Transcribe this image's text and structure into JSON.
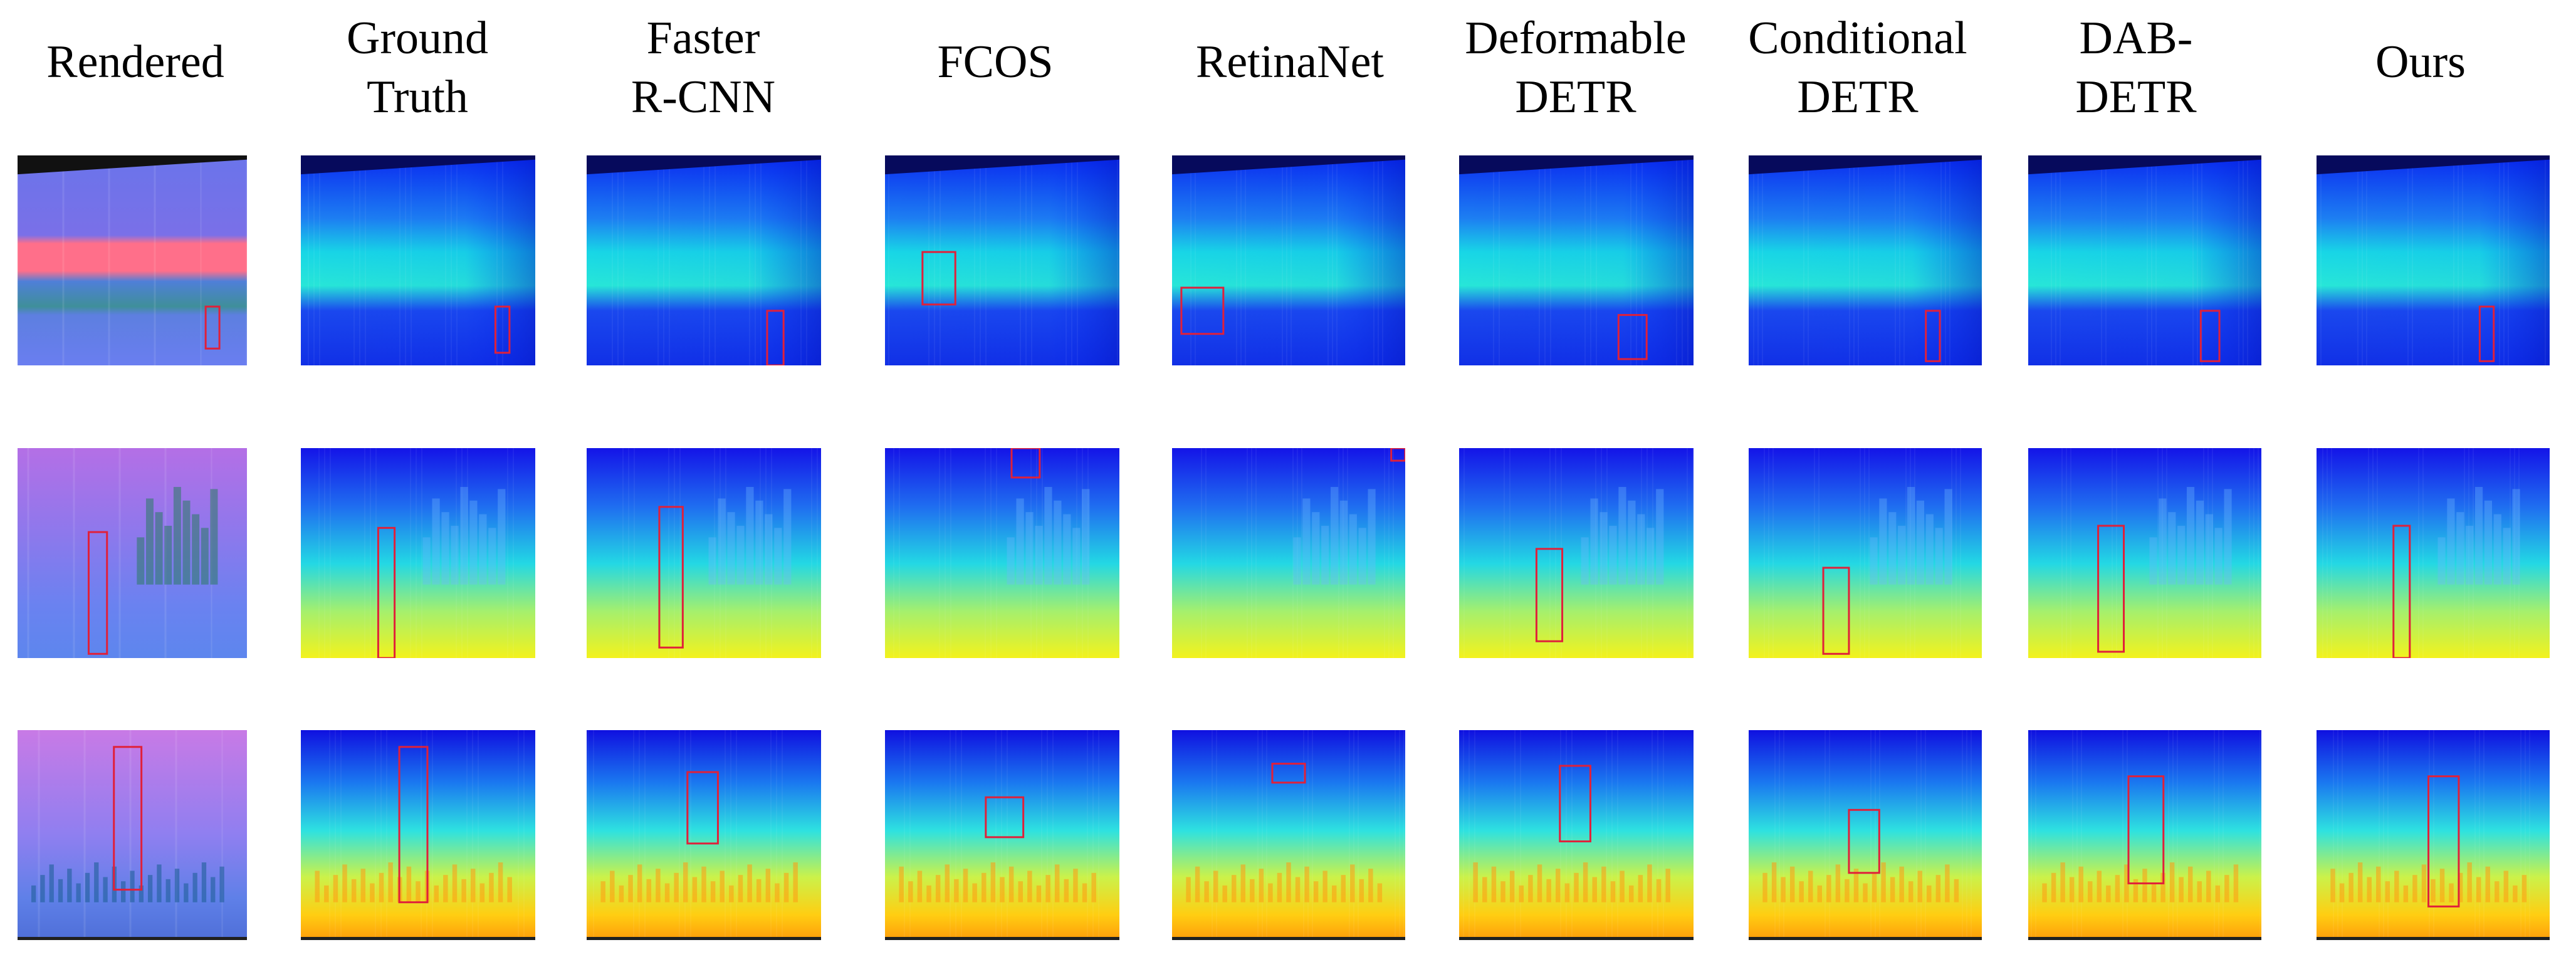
{
  "figure": {
    "columns": [
      {
        "label": "Rendered"
      },
      {
        "label": "Ground\nTruth"
      },
      {
        "label": "Faster\nR-CNN"
      },
      {
        "label": "FCOS"
      },
      {
        "label": "RetinaNet"
      },
      {
        "label": "Deformable\nDETR"
      },
      {
        "label": "Conditional\nDETR"
      },
      {
        "label": "DAB-\nDETR"
      },
      {
        "label": "Ours"
      }
    ],
    "rows": 3,
    "box_color": "#e0203a"
  }
}
